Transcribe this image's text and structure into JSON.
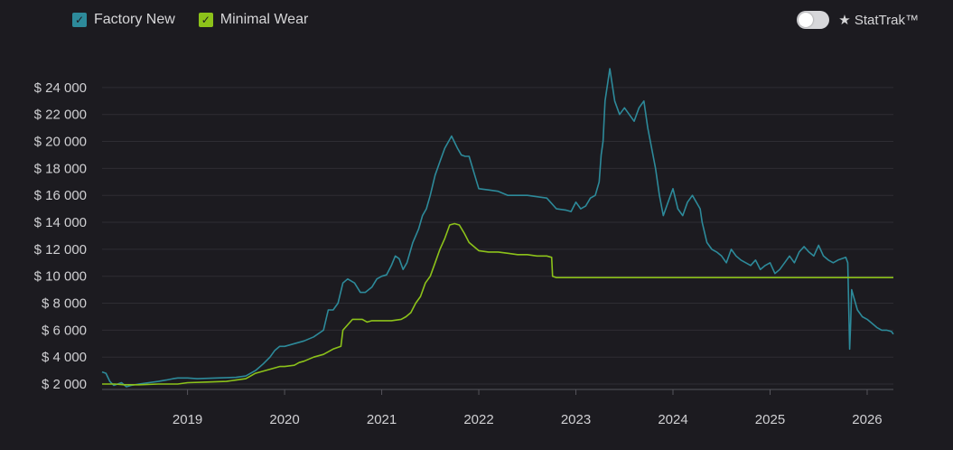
{
  "legend": {
    "items": [
      {
        "label": "Factory New",
        "color": "#2d8a9a",
        "checked": true
      },
      {
        "label": "Minimal Wear",
        "color": "#8cc21a",
        "checked": true
      }
    ]
  },
  "toggle": {
    "label": "★ StatTrak™",
    "on": false
  },
  "chart_data": {
    "type": "line",
    "title": "",
    "xlabel": "",
    "ylabel": "",
    "x_ticks": [
      "2019",
      "2020",
      "2021",
      "2022",
      "2023",
      "2024",
      "2025",
      "2026"
    ],
    "y_ticks": [
      2000,
      4000,
      6000,
      8000,
      10000,
      12000,
      14000,
      16000,
      18000,
      20000,
      22000,
      24000
    ],
    "y_tick_labels": [
      "$ 2 000",
      "$ 4 000",
      "$ 6 000",
      "$ 8 000",
      "$ 10 000",
      "$ 12 000",
      "$ 14 000",
      "$ 16 000",
      "$ 18 000",
      "$ 20 000",
      "$ 22 000",
      "$ 24 000"
    ],
    "xlim": [
      2018.12,
      2026.27
    ],
    "ylim": [
      1600,
      25400
    ],
    "grid": true,
    "legend_position": "top-left",
    "series": [
      {
        "name": "Factory New",
        "color": "#2d8a9a",
        "x": [
          2018.12,
          2018.16,
          2018.2,
          2018.24,
          2018.28,
          2018.32,
          2018.37,
          2018.42,
          2018.5,
          2018.6,
          2018.7,
          2018.78,
          2018.85,
          2018.9,
          2019.0,
          2019.1,
          2019.3,
          2019.5,
          2019.6,
          2019.7,
          2019.78,
          2019.85,
          2019.9,
          2019.95,
          2020.0,
          2020.1,
          2020.2,
          2020.3,
          2020.4,
          2020.45,
          2020.5,
          2020.55,
          2020.6,
          2020.65,
          2020.72,
          2020.78,
          2020.83,
          2020.9,
          2020.95,
          2021.0,
          2021.05,
          2021.1,
          2021.14,
          2021.18,
          2021.22,
          2021.26,
          2021.32,
          2021.38,
          2021.42,
          2021.46,
          2021.5,
          2021.55,
          2021.6,
          2021.65,
          2021.72,
          2021.78,
          2021.82,
          2021.86,
          2021.9,
          2022.0,
          2022.1,
          2022.2,
          2022.3,
          2022.4,
          2022.5,
          2022.6,
          2022.7,
          2022.8,
          2022.9,
          2022.95,
          2023.0,
          2023.05,
          2023.1,
          2023.15,
          2023.2,
          2023.24,
          2023.26,
          2023.28,
          2023.3,
          2023.35,
          2023.4,
          2023.45,
          2023.5,
          2023.55,
          2023.6,
          2023.65,
          2023.7,
          2023.74,
          2023.78,
          2023.82,
          2023.86,
          2023.9,
          2023.95,
          2024.0,
          2024.05,
          2024.1,
          2024.15,
          2024.2,
          2024.28,
          2024.3,
          2024.35,
          2024.4,
          2024.45,
          2024.5,
          2024.55,
          2024.6,
          2024.65,
          2024.7,
          2024.75,
          2024.8,
          2024.85,
          2024.9,
          2024.95,
          2025.0,
          2025.05,
          2025.1,
          2025.15,
          2025.2,
          2025.25,
          2025.3,
          2025.35,
          2025.4,
          2025.45,
          2025.5,
          2025.55,
          2025.6,
          2025.65,
          2025.7,
          2025.74,
          2025.78,
          2025.8,
          2025.82,
          2025.83,
          2025.84,
          2025.86,
          2025.9,
          2025.95,
          2026.0,
          2026.05,
          2026.1,
          2026.15,
          2026.2,
          2026.25,
          2026.27
        ],
        "y": [
          2900,
          2800,
          2200,
          1900,
          2000,
          2100,
          1800,
          1900,
          2000,
          2100,
          2200,
          2300,
          2400,
          2450,
          2450,
          2400,
          2450,
          2500,
          2600,
          3000,
          3500,
          4000,
          4500,
          4800,
          4800,
          5000,
          5200,
          5500,
          6000,
          7500,
          7500,
          8000,
          9500,
          9800,
          9500,
          8800,
          8800,
          9200,
          9800,
          10000,
          10100,
          10800,
          11500,
          11300,
          10500,
          11000,
          12500,
          13500,
          14500,
          15000,
          16000,
          17500,
          18500,
          19500,
          20400,
          19500,
          19000,
          18900,
          18900,
          16500,
          16400,
          16300,
          16000,
          16000,
          16000,
          15900,
          15800,
          15000,
          14900,
          14800,
          15500,
          15000,
          15200,
          15800,
          16000,
          17000,
          19000,
          20000,
          23000,
          25400,
          23000,
          22000,
          22500,
          22000,
          21500,
          22500,
          23000,
          21000,
          19500,
          18000,
          16000,
          14500,
          15500,
          16500,
          15000,
          14500,
          15500,
          16000,
          15000,
          14000,
          12500,
          12000,
          11800,
          11500,
          11000,
          12000,
          11500,
          11200,
          11000,
          10800,
          11200,
          10500,
          10800,
          11000,
          10200,
          10500,
          11000,
          11500,
          11000,
          11800,
          12200,
          11800,
          11500,
          12300,
          11500,
          11200,
          11000,
          11200,
          11300,
          11400,
          11000,
          4600,
          6500,
          9000,
          8500,
          7500,
          7000,
          6800,
          6500,
          6200,
          6000,
          6000,
          5900,
          5700
        ]
      },
      {
        "name": "Minimal Wear",
        "color": "#8cc21a",
        "x": [
          2018.12,
          2018.25,
          2018.35,
          2018.5,
          2018.7,
          2018.8,
          2018.9,
          2019.0,
          2019.2,
          2019.4,
          2019.5,
          2019.6,
          2019.7,
          2019.8,
          2019.9,
          2019.95,
          2020.0,
          2020.1,
          2020.15,
          2020.2,
          2020.3,
          2020.4,
          2020.5,
          2020.58,
          2020.6,
          2020.7,
          2020.8,
          2020.85,
          2020.9,
          2021.0,
          2021.1,
          2021.2,
          2021.25,
          2021.3,
          2021.35,
          2021.4,
          2021.45,
          2021.5,
          2021.55,
          2021.6,
          2021.65,
          2021.7,
          2021.75,
          2021.8,
          2021.85,
          2021.9,
          2022.0,
          2022.1,
          2022.2,
          2022.3,
          2022.4,
          2022.5,
          2022.6,
          2022.7,
          2022.75,
          2022.76,
          2022.8,
          2023.0,
          2024.0,
          2025.0,
          2026.0,
          2026.27
        ],
        "y": [
          2000,
          2000,
          1950,
          1950,
          2000,
          2000,
          2000,
          2100,
          2150,
          2200,
          2300,
          2400,
          2800,
          3000,
          3200,
          3300,
          3300,
          3400,
          3600,
          3700,
          4000,
          4200,
          4600,
          4800,
          6000,
          6800,
          6800,
          6600,
          6700,
          6700,
          6700,
          6800,
          7000,
          7300,
          8000,
          8500,
          9500,
          10000,
          11000,
          12000,
          12800,
          13800,
          13900,
          13800,
          13200,
          12500,
          11900,
          11800,
          11800,
          11700,
          11600,
          11600,
          11500,
          11500,
          11400,
          10000,
          9900,
          9900,
          9900,
          9900,
          9900,
          9900
        ]
      }
    ]
  }
}
